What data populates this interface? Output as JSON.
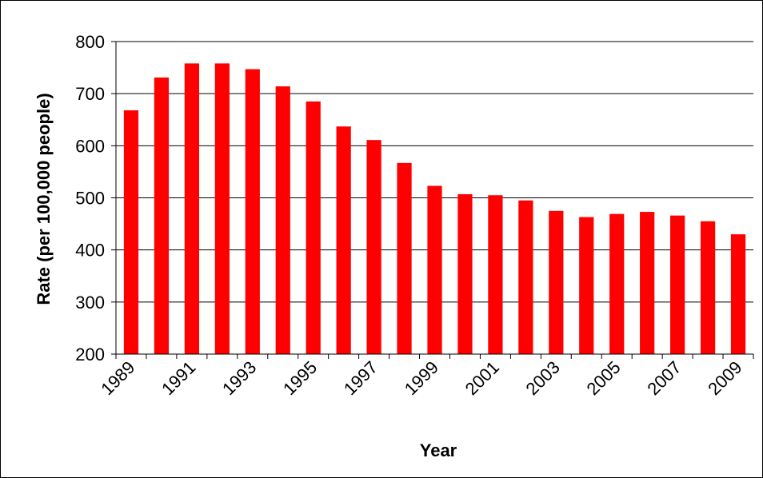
{
  "chart_data": {
    "type": "bar",
    "xlabel": "Year",
    "ylabel": "Rate (per 100,000 people)",
    "categories": [
      "1989",
      "1990",
      "1991",
      "1992",
      "1993",
      "1994",
      "1995",
      "1996",
      "1997",
      "1998",
      "1999",
      "2000",
      "2001",
      "2002",
      "2003",
      "2004",
      "2005",
      "2006",
      "2007",
      "2008",
      "2009"
    ],
    "x_tick_labels": [
      "1989",
      "1991",
      "1993",
      "1995",
      "1997",
      "1999",
      "2001",
      "2003",
      "2005",
      "2007",
      "2009"
    ],
    "values": [
      668,
      731,
      758,
      758,
      747,
      714,
      685,
      637,
      611,
      567,
      523,
      507,
      505,
      495,
      475,
      463,
      469,
      473,
      466,
      455,
      430
    ],
    "ylim": [
      200,
      800
    ],
    "y_ticks": [
      200,
      300,
      400,
      500,
      600,
      700,
      800
    ],
    "grid": "horizontal",
    "bar_color": "#ff0000",
    "legend": "none"
  }
}
